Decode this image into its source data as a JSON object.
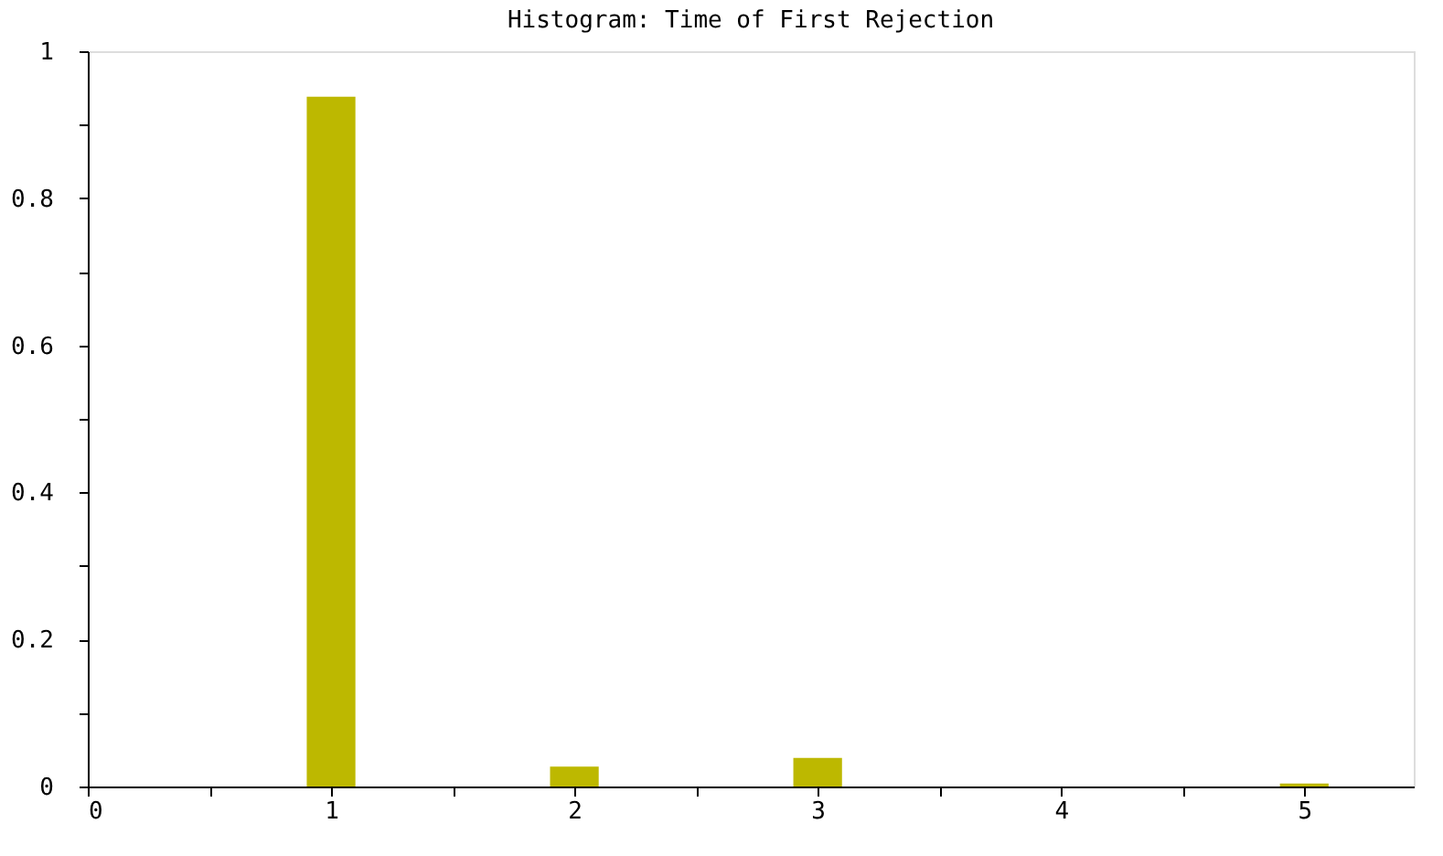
{
  "chart_data": {
    "type": "histogram",
    "title": "Histogram: Time of First Rejection",
    "bins": [
      0.9,
      1.1,
      1.9,
      2.1,
      2.9,
      3.1,
      4.9,
      5.1
    ],
    "values": [
      0.938,
      0,
      0.027,
      0,
      0.039,
      0,
      0.004
    ],
    "color": "#bdb800",
    "xlim": [
      0,
      5.45
    ],
    "xticks": [
      0,
      {
        "value": 0.5,
        "label": null
      },
      1,
      {
        "value": 1.5,
        "label": null
      },
      2,
      {
        "value": 2.5,
        "label": null
      },
      3,
      {
        "value": 3.5,
        "label": null
      },
      4,
      {
        "value": 4.5,
        "label": null
      },
      5
    ],
    "ylim": [
      0,
      1
    ],
    "yticks": [
      0,
      {
        "value": 0.1,
        "label": null
      },
      0.2,
      {
        "value": 0.3,
        "label": null
      },
      0.4,
      {
        "value": 0.5,
        "label": null
      },
      0.6,
      {
        "value": 0.7,
        "label": null
      },
      0.8,
      {
        "value": 0.9,
        "label": null
      },
      1
    ],
    "grid": false
  }
}
